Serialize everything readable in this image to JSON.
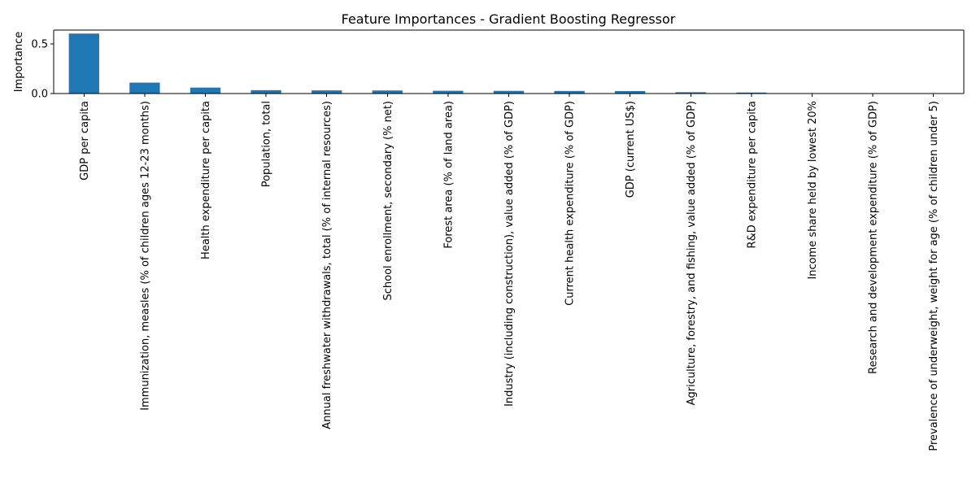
{
  "chart_data": {
    "type": "bar",
    "title": "Feature Importances - Gradient Boosting Regressor",
    "xlabel": "",
    "ylabel": "Importance",
    "ylim": [
      0,
      0.64
    ],
    "yticks": [
      0.0,
      0.5
    ],
    "ytick_labels": [
      "0.0",
      "0.5"
    ],
    "grid": false,
    "legend": "none",
    "bar_color": "#1f77b4",
    "categories": [
      "GDP per capita",
      "Immunization, measles (% of children ages 12-23 months)",
      "Health expenditure per capita",
      "Population, total",
      "Annual freshwater withdrawals, total (% of internal resources)",
      "School enrollment, secondary (% net)",
      "Forest area (% of land area)",
      "Industry (including construction), value added (% of GDP)",
      "Current health expenditure (% of GDP)",
      "GDP (current US$)",
      "Agriculture, forestry, and fishing, value added (% of GDP)",
      "R&D expenditure per capita",
      "Income share held by lowest 20%",
      "Research and development expenditure (% of GDP)",
      "Prevalence of underweight, weight for age (% of children under 5)"
    ],
    "values": [
      0.605,
      0.11,
      0.06,
      0.034,
      0.032,
      0.031,
      0.028,
      0.027,
      0.026,
      0.025,
      0.013,
      0.01,
      0.002,
      0.001,
      0.001
    ]
  }
}
